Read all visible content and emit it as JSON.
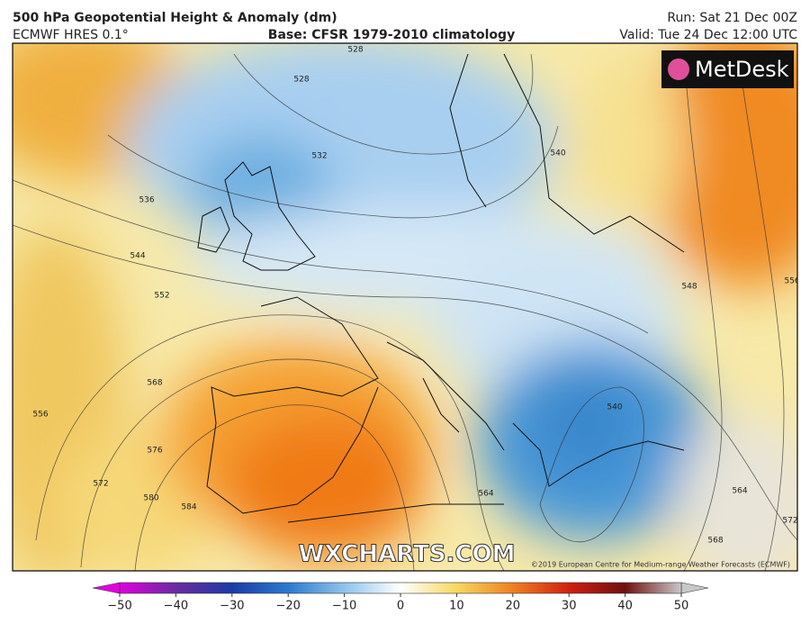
{
  "header": {
    "title": "500 hPa Geopotential Height & Anomaly (dm)",
    "model": "ECMWF HRES 0.1°",
    "base": "Base: CFSR 1979-2010 climatology",
    "run": "Run: Sat 21 Dec 00Z",
    "valid": "Valid: Tue 24 Dec 12:00 UTC"
  },
  "map": {
    "logo": "MetDesk",
    "watermark": "WXCHARTS.COM",
    "credit": "©2019 European Centre for Medium-range Weather Forecasts (ECMWF)",
    "contour_labels": [
      528,
      528,
      532,
      536,
      544,
      552,
      556,
      568,
      576,
      572,
      580,
      584,
      564,
      540,
      540,
      548,
      556,
      564,
      568,
      572
    ]
  },
  "colorbar": {
    "lim": [
      -50,
      50
    ],
    "ticks": [
      {
        "value": -50,
        "label": "−50"
      },
      {
        "value": -40,
        "label": "−40"
      },
      {
        "value": -30,
        "label": "−30"
      },
      {
        "value": -20,
        "label": "−20"
      },
      {
        "value": -10,
        "label": "−10"
      },
      0,
      10,
      20,
      30,
      40,
      50
    ],
    "colors": [
      "#e000e0",
      "#6a2aa0",
      "#1a3aa8",
      "#2a7ad0",
      "#8ec4ec",
      "#ffffff",
      "#f6d860",
      "#f08020",
      "#d02010",
      "#701010",
      "#c8c8c8"
    ]
  }
}
